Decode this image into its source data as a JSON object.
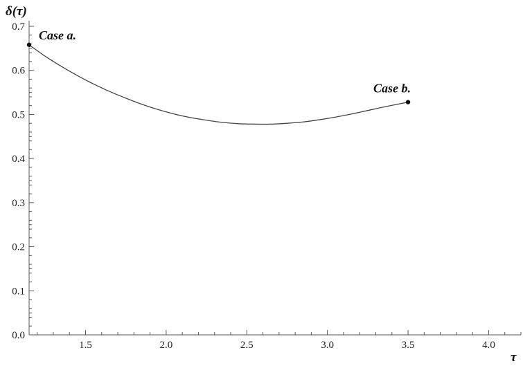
{
  "chart_data": {
    "type": "line",
    "title": "",
    "xlabel": "τ",
    "ylabel": "δ(τ)",
    "xlim": [
      1.15,
      4.2
    ],
    "ylim": [
      0.0,
      0.7
    ],
    "x_ticks": [
      "1.5",
      "2.0",
      "2.5",
      "3.0",
      "3.5",
      "4.0"
    ],
    "y_ticks": [
      "0.0",
      "0.1",
      "0.2",
      "0.3",
      "0.4",
      "0.5",
      "0.6",
      "0.7"
    ],
    "grid": false,
    "legend": "none",
    "series": [
      {
        "x": [
          1.15,
          1.25,
          1.35,
          1.45,
          1.55,
          1.65,
          1.75,
          1.85,
          1.95,
          2.05,
          2.15,
          2.25,
          2.35,
          2.45,
          2.55,
          2.65,
          2.75,
          2.85,
          2.95,
          3.05,
          3.15,
          3.25,
          3.35,
          3.5
        ],
        "y": [
          0.658,
          0.632,
          0.609,
          0.588,
          0.569,
          0.552,
          0.537,
          0.523,
          0.511,
          0.501,
          0.493,
          0.487,
          0.482,
          0.479,
          0.478,
          0.478,
          0.48,
          0.483,
          0.488,
          0.494,
          0.501,
          0.509,
          0.517,
          0.528
        ],
        "color": "#444444"
      }
    ],
    "points": [
      {
        "label": "Case a.",
        "x": 1.15,
        "y": 0.658
      },
      {
        "label": "Case b.",
        "x": 3.5,
        "y": 0.528
      }
    ]
  }
}
